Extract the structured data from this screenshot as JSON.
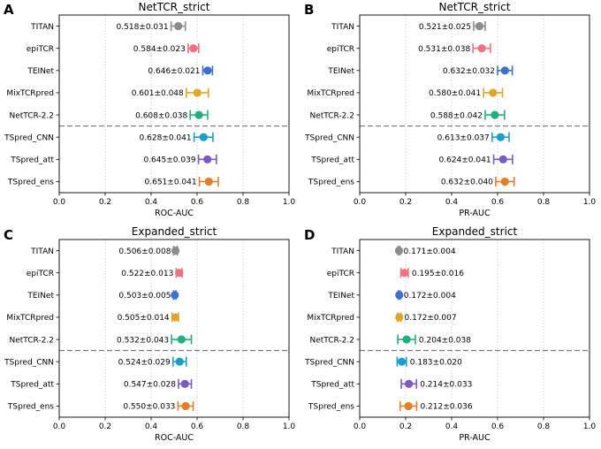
{
  "chart_data": [
    {
      "type": "scatter",
      "panel": "A",
      "title": "NetTCR_strict",
      "xlabel": "ROC-AUC",
      "xlim": [
        0.0,
        1.0
      ],
      "xticks": [
        "0.0",
        "0.2",
        "0.4",
        "0.6",
        "0.8",
        "1.0"
      ],
      "grid": "vertical dotted",
      "categories": [
        "TITAN",
        "epiTCR",
        "TEINet",
        "MixTCRpred",
        "NetTCR-2.2",
        "TSpred_CNN",
        "TSpred_att",
        "TSpred_ens"
      ],
      "values": [
        0.518,
        0.584,
        0.646,
        0.601,
        0.608,
        0.628,
        0.645,
        0.651
      ],
      "errors": [
        0.031,
        0.023,
        0.021,
        0.048,
        0.038,
        0.041,
        0.039,
        0.041
      ],
      "labels": [
        "0.518±0.031",
        "0.584±0.023",
        "0.646±0.021",
        "0.601±0.048",
        "0.608±0.038",
        "0.628±0.041",
        "0.645±0.039",
        "0.651±0.041"
      ]
    },
    {
      "type": "scatter",
      "panel": "B",
      "title": "NetTCR_strict",
      "xlabel": "PR-AUC",
      "xlim": [
        0.0,
        1.0
      ],
      "xticks": [
        "0.0",
        "0.2",
        "0.4",
        "0.6",
        "0.8",
        "1.0"
      ],
      "grid": "vertical dotted",
      "categories": [
        "TITAN",
        "epiTCR",
        "TEINet",
        "MixTCRpred",
        "NetTCR-2.2",
        "TSpred_CNN",
        "TSpred_att",
        "TSpred_ens"
      ],
      "values": [
        0.521,
        0.531,
        0.632,
        0.58,
        0.588,
        0.613,
        0.624,
        0.632
      ],
      "errors": [
        0.025,
        0.038,
        0.032,
        0.041,
        0.042,
        0.037,
        0.041,
        0.04
      ],
      "labels": [
        "0.521±0.025",
        "0.531±0.038",
        "0.632±0.032",
        "0.580±0.041",
        "0.588±0.042",
        "0.613±0.037",
        "0.624±0.041",
        "0.632±0.040"
      ]
    },
    {
      "type": "scatter",
      "panel": "C",
      "title": "Expanded_strict",
      "xlabel": "ROC-AUC",
      "xlim": [
        0.0,
        1.0
      ],
      "xticks": [
        "0.0",
        "0.2",
        "0.4",
        "0.6",
        "0.8",
        "1.0"
      ],
      "grid": "vertical dotted",
      "categories": [
        "TITAN",
        "epiTCR",
        "TEINet",
        "MixTCRpred",
        "NetTCR-2.2",
        "TSpred_CNN",
        "TSpred_att",
        "TSpred_ens"
      ],
      "values": [
        0.506,
        0.522,
        0.503,
        0.505,
        0.532,
        0.524,
        0.547,
        0.55
      ],
      "errors": [
        0.008,
        0.013,
        0.005,
        0.014,
        0.043,
        0.029,
        0.028,
        0.033
      ],
      "labels": [
        "0.506±0.008",
        "0.522±0.013",
        "0.503±0.005",
        "0.505±0.014",
        "0.532±0.043",
        "0.524±0.029",
        "0.547±0.028",
        "0.550±0.033"
      ]
    },
    {
      "type": "scatter",
      "panel": "D",
      "title": "Expanded_strict",
      "xlabel": "PR-AUC",
      "xlim": [
        0.0,
        1.0
      ],
      "xticks": [
        "0.0",
        "0.2",
        "0.4",
        "0.6",
        "0.8",
        "1.0"
      ],
      "grid": "vertical dotted",
      "categories": [
        "TITAN",
        "epiTCR",
        "TEINet",
        "MixTCRpred",
        "NetTCR-2.2",
        "TSpred_CNN",
        "TSpred_att",
        "TSpred_ens"
      ],
      "values": [
        0.171,
        0.195,
        0.172,
        0.172,
        0.204,
        0.183,
        0.214,
        0.212
      ],
      "errors": [
        0.004,
        0.016,
        0.004,
        0.007,
        0.038,
        0.02,
        0.033,
        0.036
      ],
      "labels": [
        "0.171±0.004",
        "0.195±0.016",
        "0.172±0.004",
        "0.172±0.007",
        "0.204±0.038",
        "0.183±0.020",
        "0.214±0.033",
        "0.212±0.036"
      ]
    }
  ],
  "colors": [
    "#8c8c8c",
    "#f07282",
    "#3f6fcf",
    "#dba72c",
    "#21b07d",
    "#1b9fc7",
    "#7a5bbf",
    "#e37e2a"
  ]
}
